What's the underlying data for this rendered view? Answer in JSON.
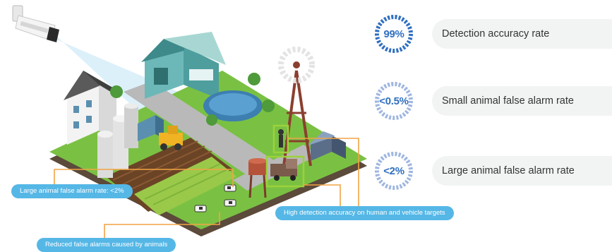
{
  "stats": [
    {
      "value": "99%",
      "label": "Detection accuracy rate",
      "ring_color": "#2f6fc0"
    },
    {
      "value": "<0.5%",
      "label": "Small animal false alarm rate",
      "ring_color": "#9fb6e0"
    },
    {
      "value": "<2%",
      "label": "Large animal false alarm rate",
      "ring_color": "#9fb6e0"
    }
  ],
  "callouts": {
    "large_animal": "Large animal false alarm rate: <2%",
    "human_vehicle": "High detection accuracy on human and vehicle targets",
    "animals": "Reduced false alarms caused by animals"
  },
  "colors": {
    "callout_bg": "#55b7e6",
    "leader_line": "#f2a444",
    "highlight_box": "#9bd23a",
    "grass": "#7ac143",
    "accent": "#2f6fc0"
  }
}
